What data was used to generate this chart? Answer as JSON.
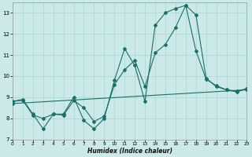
{
  "xlabel": "Humidex (Indice chaleur)",
  "background_color": "#cce9e9",
  "grid_color": "#aad4d4",
  "line_color": "#1a706a",
  "xlim": [
    0,
    23
  ],
  "ylim": [
    7,
    13.5
  ],
  "yticks": [
    7,
    8,
    9,
    10,
    11,
    12,
    13
  ],
  "xticks": [
    0,
    1,
    2,
    3,
    4,
    5,
    6,
    7,
    8,
    9,
    10,
    11,
    12,
    13,
    14,
    15,
    16,
    17,
    18,
    19,
    20,
    21,
    22,
    23
  ],
  "line1_x": [
    0,
    1,
    2,
    3,
    4,
    5,
    6,
    7,
    8,
    9,
    10,
    11,
    12,
    13,
    14,
    15,
    16,
    17,
    18,
    19,
    20,
    21,
    22,
    23
  ],
  "line1_y": [
    8.8,
    8.9,
    8.2,
    7.5,
    8.2,
    8.2,
    9.0,
    7.9,
    7.5,
    8.0,
    9.8,
    11.3,
    10.5,
    8.8,
    12.4,
    13.0,
    13.2,
    13.35,
    12.9,
    9.9,
    9.5,
    9.35,
    9.3,
    9.4
  ],
  "line2_x": [
    0,
    1,
    2,
    3,
    4,
    5,
    6,
    7,
    8,
    9,
    10,
    11,
    12,
    13,
    14,
    15,
    16,
    17,
    18,
    19,
    20,
    21,
    22,
    23
  ],
  "line2_y": [
    8.8,
    8.85,
    8.15,
    8.0,
    8.2,
    8.15,
    8.85,
    8.5,
    7.85,
    8.1,
    9.6,
    10.3,
    10.75,
    9.5,
    11.1,
    11.5,
    12.3,
    13.35,
    11.2,
    9.85,
    9.55,
    9.35,
    9.25,
    9.4
  ],
  "line3_x": [
    0,
    23
  ],
  "line3_y": [
    8.7,
    9.35
  ]
}
